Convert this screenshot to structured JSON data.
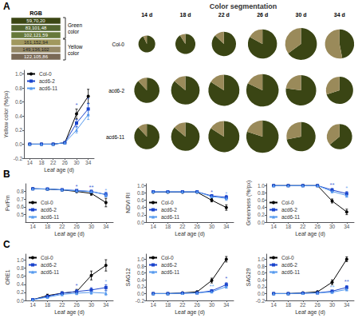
{
  "chart_data": [
    {
      "type": "table",
      "panel": "A",
      "title": "RGB",
      "categories": [
        "59,70,20",
        "83,101,48",
        "102,121,59",
        "161,152,94",
        "149,136,102",
        "122,105,86"
      ],
      "colors": [
        "rgb(59,70,20)",
        "rgb(83,101,48)",
        "rgb(102,121,59)",
        "rgb(161,152,94)",
        "rgb(149,136,102)",
        "rgb(122,105,86)"
      ],
      "annotations": [
        "Green color",
        "Yellow color"
      ]
    },
    {
      "type": "line",
      "xlabel": "Leaf age (d)",
      "ylabel": "Yellow color (%/px)",
      "x": [
        14,
        18,
        22,
        26,
        30,
        34
      ],
      "xlim": [
        12,
        36
      ],
      "xticks": [
        14,
        18,
        22,
        26,
        30,
        34
      ],
      "ylim": [
        -0.2,
        1.05
      ],
      "yticks": [
        -0.2,
        {
          "value": 0,
          "label": "0.0"
        },
        0.2,
        0.4,
        0.6,
        0.8,
        {
          "value": 1,
          "label": "1.0"
        }
      ],
      "grid": false,
      "legend": "upper left",
      "series": [
        {
          "name": "Col-0",
          "color": "#000000",
          "marker": "circle",
          "values": [
            0.0,
            0.0,
            0.0,
            0.02,
            0.43,
            0.68
          ],
          "errors": [
            0.005,
            0.005,
            0.005,
            0.015,
            0.07,
            0.1
          ]
        },
        {
          "name": "acd6-2",
          "color": "#1a44cc",
          "marker": "square",
          "values": [
            0.0,
            0.0,
            0.0,
            0.02,
            0.3,
            0.5
          ],
          "errors": [
            0.005,
            0.005,
            0.005,
            0.015,
            0.05,
            0.08
          ]
        },
        {
          "name": "acd6-11",
          "color": "#5599ee",
          "marker": "triangle",
          "values": [
            0.0,
            0.0,
            0.0,
            0.02,
            0.2,
            0.42
          ],
          "errors": [
            0.005,
            0.005,
            0.005,
            0.015,
            0.04,
            0.07
          ]
        }
      ],
      "annotations": [
        {
          "text": "*",
          "x": 30,
          "y": 0.52,
          "color": "#1a44cc"
        },
        {
          "text": "*",
          "x": 34,
          "y": 0.6,
          "color": "#1a44cc"
        },
        {
          "text": "*",
          "x": 34,
          "y": 0.52,
          "color": "#5599ee"
        }
      ]
    },
    {
      "type": "pie",
      "title": "Color segmentation",
      "categories": [
        "14 d",
        "18 d",
        "22 d",
        "26 d",
        "30 d",
        "34 d"
      ],
      "colors": [
        "#3a4514",
        "#9a8a5a"
      ],
      "series": [
        {
          "name": "Col-0",
          "values": [
            [
              0.93,
              0.07
            ],
            [
              0.91,
              0.09
            ],
            [
              0.87,
              0.13
            ],
            [
              0.83,
              0.17
            ],
            [
              0.65,
              0.35
            ],
            [
              0.47,
              0.53
            ]
          ],
          "sizes": [
            0.52,
            0.62,
            0.75,
            0.9,
            0.98,
            0.9
          ]
        },
        {
          "name": "acd6-2",
          "values": [
            [
              0.88,
              0.12
            ],
            [
              0.86,
              0.14
            ],
            [
              0.84,
              0.16
            ],
            [
              0.82,
              0.18
            ],
            [
              0.77,
              0.23
            ],
            [
              0.7,
              0.3
            ]
          ],
          "sizes": [
            0.78,
            0.88,
            0.96,
            1.0,
            0.94,
            0.84
          ]
        },
        {
          "name": "acd6-11",
          "values": [
            [
              0.88,
              0.12
            ],
            [
              0.86,
              0.14
            ],
            [
              0.84,
              0.16
            ],
            [
              0.8,
              0.2
            ],
            [
              0.72,
              0.28
            ],
            [
              0.64,
              0.36
            ]
          ],
          "sizes": [
            0.78,
            0.88,
            0.96,
            1.0,
            0.9,
            0.78
          ]
        }
      ]
    },
    {
      "type": "line",
      "panel": "B",
      "xlabel": "Leaf age (d)",
      "ylabel": "Fv/Fm",
      "x": [
        14,
        18,
        22,
        26,
        30,
        34
      ],
      "xlim": [
        12,
        36
      ],
      "xticks": [
        14,
        18,
        22,
        26,
        30,
        34
      ],
      "ylim": [
        0.4,
        0.9
      ],
      "yticks": [
        0.5,
        0.6,
        0.7,
        0.8
      ],
      "grid": false,
      "legend": "lower left",
      "series": [
        {
          "name": "Col-0",
          "color": "#000000",
          "marker": "circle",
          "values": [
            0.835,
            0.83,
            0.82,
            0.8,
            0.775,
            0.655
          ],
          "errors": [
            0.008,
            0.008,
            0.008,
            0.015,
            0.025,
            0.055
          ]
        },
        {
          "name": "acd6-2",
          "color": "#1a44cc",
          "marker": "square",
          "values": [
            0.835,
            0.832,
            0.822,
            0.812,
            0.8,
            0.76
          ],
          "errors": [
            0.008,
            0.008,
            0.008,
            0.008,
            0.015,
            0.03
          ]
        },
        {
          "name": "acd6-11",
          "color": "#5599ee",
          "marker": "triangle",
          "values": [
            0.835,
            0.832,
            0.822,
            0.81,
            0.798,
            0.758
          ],
          "errors": [
            0.008,
            0.008,
            0.008,
            0.008,
            0.015,
            0.03
          ]
        }
      ],
      "annotations": [
        {
          "text": "*",
          "x": 26,
          "y": 0.828,
          "color": "#1a44cc"
        },
        {
          "text": "**",
          "x": 30,
          "y": 0.826,
          "color": "#1a44cc"
        },
        {
          "text": "*",
          "x": 34,
          "y": 0.785,
          "color": "#5599ee"
        }
      ]
    },
    {
      "type": "line",
      "xlabel": "Leaf age (d)",
      "ylabel": "NDVI RI",
      "x": [
        14,
        18,
        22,
        26,
        30,
        34
      ],
      "xlim": [
        12,
        36
      ],
      "xticks": [
        14,
        18,
        22,
        26,
        30,
        34
      ],
      "ylim": [
        0,
        1.05
      ],
      "yticks": [
        {
          "value": 0,
          "label": "0.0"
        },
        0.2,
        0.4,
        0.6,
        0.8,
        {
          "value": 1,
          "label": "1.0"
        }
      ],
      "grid": false,
      "legend": "lower left",
      "series": [
        {
          "name": "Col-0",
          "color": "#000000",
          "marker": "circle",
          "values": [
            0.82,
            0.82,
            0.82,
            0.82,
            0.6,
            0.4
          ],
          "errors": [
            0.008,
            0.008,
            0.008,
            0.008,
            0.045,
            0.075
          ]
        },
        {
          "name": "acd6-2",
          "color": "#1a44cc",
          "marker": "square",
          "values": [
            0.83,
            0.83,
            0.83,
            0.83,
            0.72,
            0.68
          ],
          "errors": [
            0.008,
            0.008,
            0.008,
            0.008,
            0.035,
            0.055
          ]
        },
        {
          "name": "acd6-11",
          "color": "#5599ee",
          "marker": "triangle",
          "values": [
            0.83,
            0.83,
            0.83,
            0.83,
            0.7,
            0.65
          ],
          "errors": [
            0.008,
            0.008,
            0.008,
            0.008,
            0.035,
            0.055
          ]
        }
      ],
      "annotations": [
        {
          "text": "*",
          "x": 30,
          "y": 0.755,
          "color": "#1a44cc"
        },
        {
          "text": "*",
          "x": 34,
          "y": 0.715,
          "color": "#5599ee"
        }
      ]
    },
    {
      "type": "line",
      "xlabel": "Leaf age (d)",
      "ylabel": "Greenness (%/px)",
      "x": [
        14,
        18,
        22,
        26,
        30,
        34
      ],
      "xlim": [
        12,
        36
      ],
      "xticks": [
        14,
        18,
        22,
        26,
        30,
        34
      ],
      "ylim": [
        0,
        1.05
      ],
      "yticks": [
        {
          "value": 0,
          "label": "0.0"
        },
        0.2,
        0.4,
        0.6,
        0.8,
        {
          "value": 1,
          "label": "1.0"
        }
      ],
      "grid": false,
      "legend": "lower left",
      "series": [
        {
          "name": "Col-0",
          "color": "#000000",
          "marker": "circle",
          "values": [
            1.0,
            1.0,
            1.0,
            1.0,
            0.58,
            0.28
          ],
          "errors": [
            0.005,
            0.005,
            0.005,
            0.005,
            0.055,
            0.075
          ]
        },
        {
          "name": "acd6-2",
          "color": "#1a44cc",
          "marker": "square",
          "values": [
            1.0,
            1.0,
            1.0,
            1.0,
            0.88,
            0.78
          ],
          "errors": [
            0.005,
            0.005,
            0.005,
            0.005,
            0.04,
            0.055
          ]
        },
        {
          "name": "acd6-11",
          "color": "#5599ee",
          "marker": "triangle",
          "values": [
            1.0,
            1.0,
            1.0,
            1.0,
            0.84,
            0.73
          ],
          "errors": [
            0.005,
            0.005,
            0.005,
            0.005,
            0.038,
            0.048
          ]
        }
      ],
      "annotations": [
        {
          "text": "**",
          "x": 30,
          "y": 0.96,
          "color": "#1a44cc"
        },
        {
          "text": "*",
          "x": 34,
          "y": 0.86,
          "color": "#5599ee"
        }
      ]
    },
    {
      "type": "line",
      "panel": "C",
      "xlabel": "Leaf age (d)",
      "ylabel": "ORE1",
      "x": [
        14,
        18,
        22,
        26,
        30,
        34
      ],
      "xlim": [
        12,
        36
      ],
      "xticks": [
        14,
        18,
        22,
        26,
        30,
        34
      ],
      "ylim": [
        0,
        1.15
      ],
      "yticks": [
        {
          "value": 0,
          "label": "0.0"
        },
        0.2,
        0.4,
        0.6,
        0.8,
        {
          "value": 1,
          "label": "1.0"
        }
      ],
      "grid": false,
      "legend": "upper left",
      "series": [
        {
          "name": "Col-0",
          "color": "#000000",
          "marker": "circle",
          "values": [
            0.02,
            0.12,
            0.18,
            0.22,
            0.62,
            0.87
          ],
          "errors": [
            0.015,
            0.035,
            0.035,
            0.055,
            0.11,
            0.14
          ]
        },
        {
          "name": "acd6-2",
          "color": "#1a44cc",
          "marker": "square",
          "values": [
            0.02,
            0.1,
            0.18,
            0.22,
            0.26,
            0.32
          ],
          "errors": [
            0.015,
            0.025,
            0.035,
            0.045,
            0.055,
            0.07
          ]
        },
        {
          "name": "acd6-11",
          "color": "#5599ee",
          "marker": "triangle",
          "values": [
            0.02,
            0.08,
            0.15,
            0.18,
            0.2,
            0.18
          ],
          "errors": [
            0.015,
            0.025,
            0.03,
            0.038,
            0.045,
            0.055
          ]
        }
      ],
      "annotations": [
        {
          "text": "*",
          "x": 26,
          "y": 0.305,
          "color": "#1a44cc"
        },
        {
          "text": "*",
          "x": 34,
          "y": 0.4,
          "color": "#5599ee"
        }
      ]
    },
    {
      "type": "line",
      "xlabel": "Leaf age (d)",
      "ylabel": "SAG12",
      "x": [
        14,
        18,
        22,
        26,
        30,
        34
      ],
      "xlim": [
        12,
        36
      ],
      "xticks": [
        14,
        18,
        22,
        26,
        30,
        34
      ],
      "ylim": [
        -0.2,
        1.15
      ],
      "yticks": [
        -0.2,
        {
          "value": 0,
          "label": "0.0"
        },
        0.2,
        0.4,
        0.6,
        0.8,
        {
          "value": 1,
          "label": "1.0"
        }
      ],
      "grid": false,
      "legend": "upper left",
      "series": [
        {
          "name": "Col-0",
          "color": "#000000",
          "marker": "circle",
          "values": [
            0.0,
            0.0,
            0.02,
            0.05,
            0.38,
            1.0
          ],
          "errors": [
            0.005,
            0.005,
            0.01,
            0.02,
            0.07,
            0.08
          ]
        },
        {
          "name": "acd6-2",
          "color": "#1a44cc",
          "marker": "square",
          "values": [
            0.0,
            0.0,
            0.01,
            0.02,
            0.08,
            0.26
          ],
          "errors": [
            0.005,
            0.005,
            0.008,
            0.012,
            0.025,
            0.055
          ]
        },
        {
          "name": "acd6-11",
          "color": "#5599ee",
          "marker": "triangle",
          "values": [
            0.0,
            0.0,
            0.01,
            0.02,
            0.05,
            0.2
          ],
          "errors": [
            0.005,
            0.005,
            0.008,
            0.012,
            0.018,
            0.045
          ]
        }
      ],
      "annotations": [
        {
          "text": "*",
          "x": 34,
          "y": 0.36,
          "color": "#1a44cc"
        },
        {
          "text": "**",
          "x": 30,
          "y": 0.13,
          "color": "#5599ee"
        }
      ]
    },
    {
      "type": "line",
      "xlabel": "Leaf age (d)",
      "ylabel": "SAG29",
      "x": [
        14,
        18,
        22,
        26,
        30,
        34
      ],
      "xlim": [
        12,
        36
      ],
      "xticks": [
        14,
        18,
        22,
        26,
        30,
        34
      ],
      "ylim": [
        -0.2,
        1.15
      ],
      "yticks": [
        -0.2,
        {
          "value": 0,
          "label": "0.0"
        },
        0.2,
        0.4,
        0.6,
        0.8,
        {
          "value": 1,
          "label": "1.0"
        }
      ],
      "grid": false,
      "legend": "upper left",
      "series": [
        {
          "name": "Col-0",
          "color": "#000000",
          "marker": "circle",
          "values": [
            0.0,
            0.0,
            0.02,
            0.05,
            0.33,
            1.0
          ],
          "errors": [
            0.005,
            0.005,
            0.01,
            0.02,
            0.07,
            0.07
          ]
        },
        {
          "name": "acd6-2",
          "color": "#1a44cc",
          "marker": "square",
          "values": [
            0.0,
            0.0,
            0.01,
            0.02,
            0.07,
            0.18
          ],
          "errors": [
            0.005,
            0.005,
            0.008,
            0.012,
            0.022,
            0.05
          ]
        },
        {
          "name": "acd6-11",
          "color": "#5599ee",
          "marker": "triangle",
          "values": [
            0.0,
            0.0,
            0.01,
            0.02,
            0.04,
            0.12
          ],
          "errors": [
            0.005,
            0.005,
            0.008,
            0.012,
            0.015,
            0.038
          ]
        }
      ],
      "annotations": [
        {
          "text": "**",
          "x": 34,
          "y": 0.28,
          "color": "#1a44cc"
        },
        {
          "text": "**",
          "x": 30,
          "y": 0.12,
          "color": "#5599ee"
        }
      ]
    }
  ]
}
